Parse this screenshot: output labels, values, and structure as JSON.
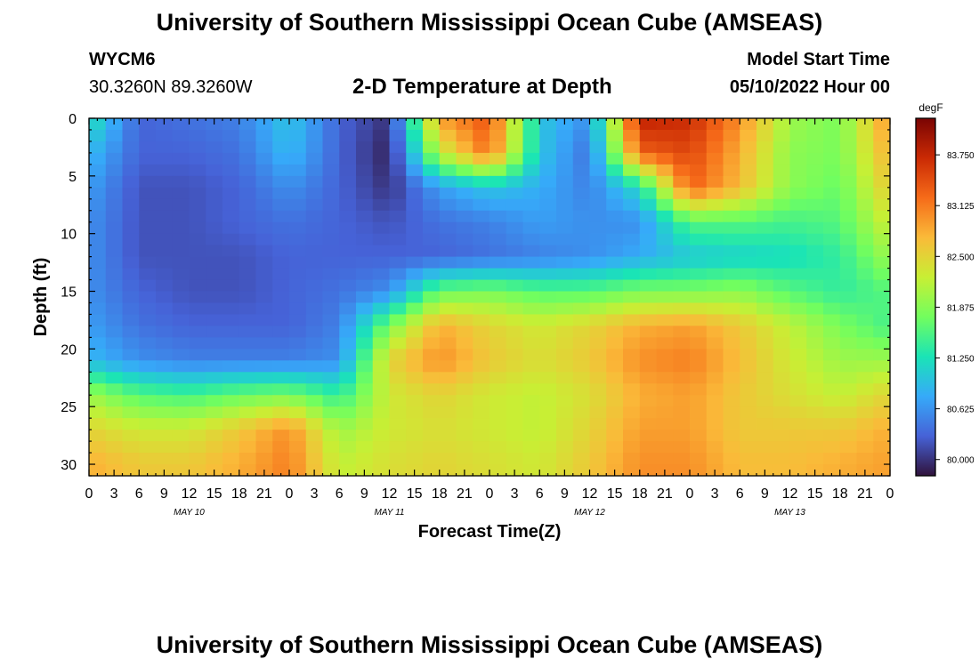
{
  "header": {
    "title": "University of Southern Mississippi Ocean Cube (AMSEAS)",
    "station": "WYCM6",
    "coords": "30.3260N  89.3260W",
    "subtitle": "2-D Temperature at Depth",
    "model_label": "Model Start Time",
    "model_time": "05/10/2022 Hour 00"
  },
  "footer": {
    "title": "University of Southern Mississippi Ocean Cube (AMSEAS)"
  },
  "chart_data": {
    "type": "heatmap",
    "title": "2-D Temperature at Depth",
    "xlabel": "Forecast Time(Z)",
    "ylabel": "Depth (ft)",
    "x_ticks": [
      "0",
      "3",
      "6",
      "9",
      "12",
      "15",
      "18",
      "21",
      "0",
      "3",
      "6",
      "9",
      "12",
      "15",
      "18",
      "21",
      "0",
      "3",
      "6",
      "9",
      "12",
      "15",
      "18",
      "21",
      "0",
      "3",
      "6",
      "9",
      "12",
      "15",
      "18",
      "21",
      "0"
    ],
    "x_range_hours": [
      0,
      96
    ],
    "day_labels": [
      {
        "label": "MAY 10",
        "hour": 12
      },
      {
        "label": "MAY 11",
        "hour": 36
      },
      {
        "label": "MAY 12",
        "hour": 60
      },
      {
        "label": "MAY 13",
        "hour": 84
      }
    ],
    "y_ticks": [
      "0",
      "5",
      "10",
      "15",
      "20",
      "25",
      "30"
    ],
    "y_range_ft": [
      0,
      31
    ],
    "y_inverted": true,
    "colorbar": {
      "unit": "degF",
      "ticks": [
        "83.750",
        "83.125",
        "82.500",
        "81.875",
        "81.250",
        "80.625",
        "80.000"
      ],
      "range": [
        79.8,
        84.2
      ],
      "colormap": [
        "#30123b",
        "#4662d7",
        "#36aaf9",
        "#1ae4b6",
        "#72fe5e",
        "#c8ef34",
        "#faba39",
        "#f66b19",
        "#ca2a04",
        "#7a0403"
      ]
    },
    "depths_ft": [
      0,
      3,
      6,
      9,
      12,
      15,
      18,
      21,
      24,
      27,
      30
    ],
    "times_hours": [
      0,
      6,
      12,
      18,
      24,
      30,
      36,
      42,
      48,
      54,
      60,
      66,
      72,
      78,
      84,
      90,
      96
    ],
    "values": [
      [
        81.3,
        80.3,
        80.4,
        80.5,
        81.0,
        80.3,
        80.0,
        82.9,
        83.4,
        81.0,
        80.6,
        83.8,
        83.7,
        83.0,
        82.0,
        81.8,
        83.0
      ],
      [
        80.9,
        80.3,
        80.3,
        80.4,
        80.9,
        80.3,
        79.9,
        82.2,
        83.2,
        81.0,
        80.4,
        83.3,
        83.5,
        82.8,
        81.9,
        81.8,
        82.8
      ],
      [
        80.7,
        80.2,
        80.2,
        80.3,
        80.6,
        80.3,
        80.0,
        80.7,
        81.0,
        80.8,
        80.5,
        81.2,
        83.3,
        82.7,
        81.9,
        81.7,
        82.6
      ],
      [
        80.6,
        80.2,
        80.2,
        80.3,
        80.4,
        80.3,
        80.2,
        80.4,
        80.5,
        80.7,
        80.6,
        80.6,
        81.6,
        81.6,
        81.5,
        81.6,
        82.3
      ],
      [
        80.6,
        80.2,
        80.2,
        80.2,
        80.3,
        80.3,
        80.3,
        80.3,
        80.4,
        80.5,
        80.6,
        80.8,
        81.0,
        81.1,
        81.2,
        81.4,
        82.0
      ],
      [
        80.6,
        80.3,
        80.2,
        80.2,
        80.3,
        80.4,
        80.6,
        81.7,
        81.8,
        81.6,
        81.6,
        81.8,
        81.8,
        81.9,
        81.6,
        81.4,
        81.6
      ],
      [
        80.7,
        80.4,
        80.3,
        80.3,
        80.3,
        80.5,
        81.8,
        82.8,
        82.5,
        82.3,
        82.5,
        82.8,
        82.9,
        82.6,
        82.2,
        81.8,
        81.5
      ],
      [
        80.9,
        80.6,
        80.5,
        80.5,
        80.5,
        80.6,
        82.5,
        83.0,
        82.6,
        82.4,
        82.6,
        83.0,
        83.1,
        82.7,
        82.3,
        82.0,
        82.0
      ],
      [
        82.0,
        81.6,
        81.5,
        81.7,
        81.8,
        81.4,
        82.3,
        82.5,
        82.3,
        82.2,
        82.4,
        82.8,
        82.9,
        82.6,
        82.4,
        82.2,
        82.5
      ],
      [
        82.5,
        82.3,
        82.3,
        82.6,
        83.0,
        82.0,
        82.3,
        82.4,
        82.3,
        82.2,
        82.5,
        82.9,
        82.9,
        82.6,
        82.6,
        82.6,
        82.8
      ],
      [
        82.8,
        82.6,
        82.6,
        82.8,
        83.1,
        82.2,
        82.4,
        82.5,
        82.4,
        82.3,
        82.6,
        83.0,
        83.0,
        82.7,
        82.7,
        82.8,
        82.9
      ]
    ]
  }
}
